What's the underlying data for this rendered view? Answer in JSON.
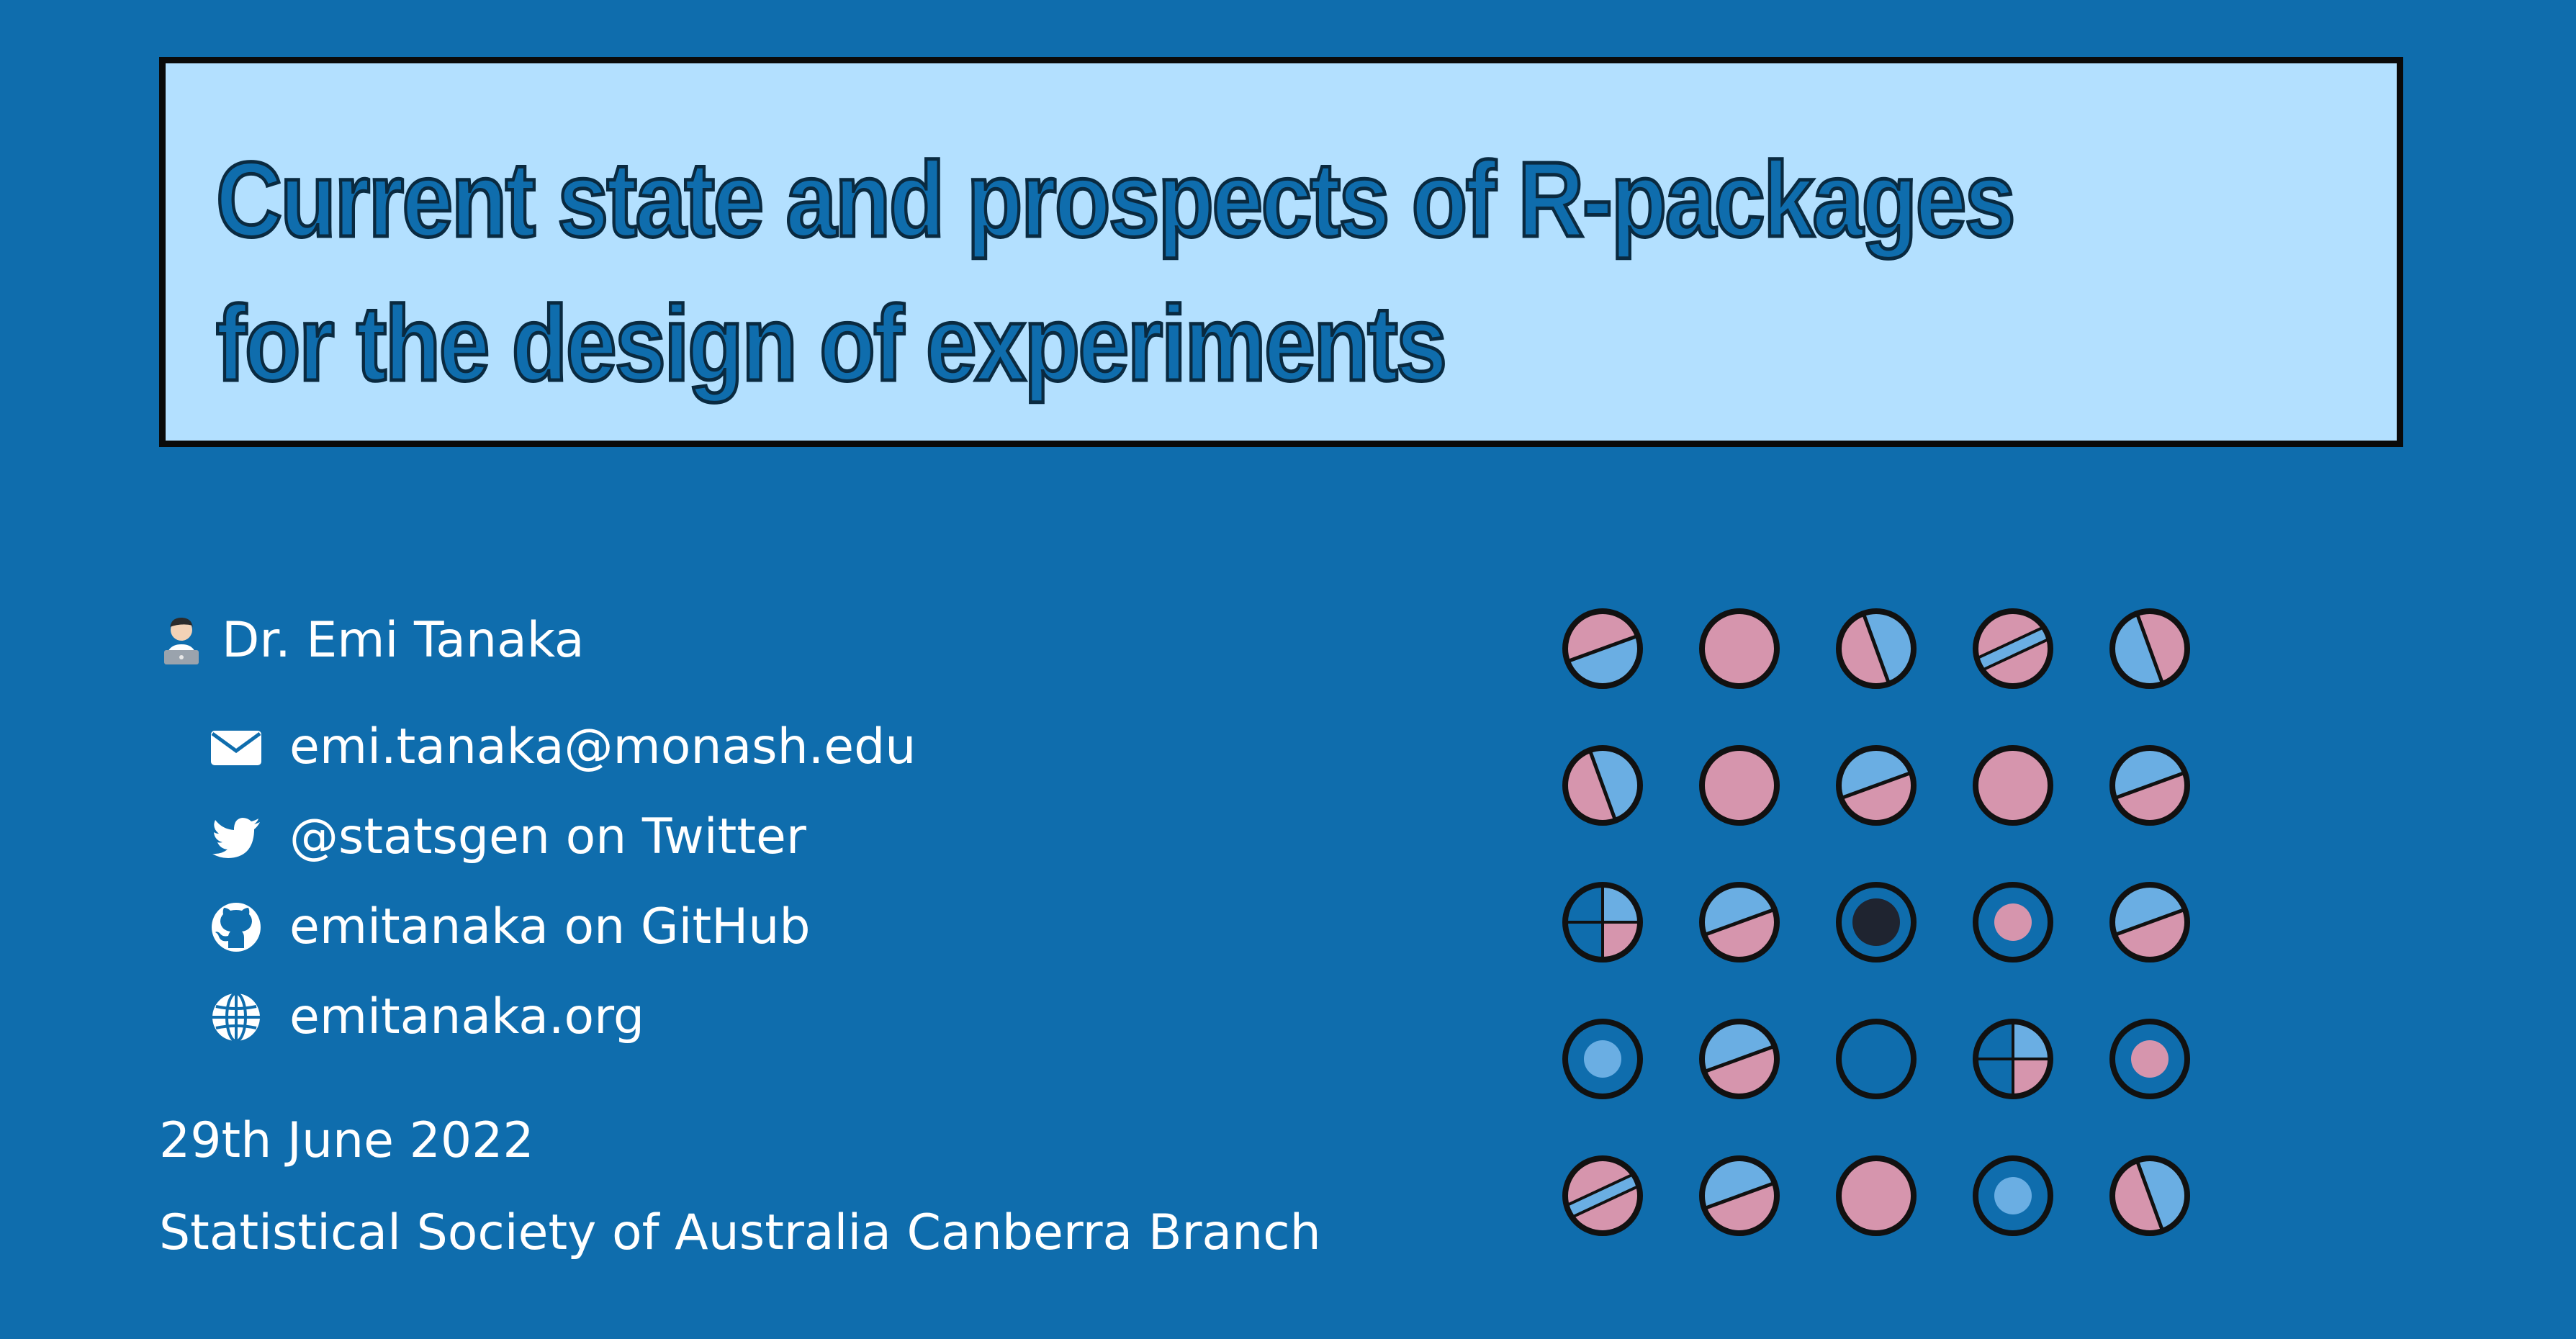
{
  "title": {
    "line1": "Current state and prospects of R-packages",
    "line2": "for the design of experiments"
  },
  "author": {
    "emoji": "technologist-emoji",
    "name": "Dr. Emi Tanaka"
  },
  "contacts": [
    {
      "icon": "envelope-icon",
      "text": "emi.tanaka@monash.edu"
    },
    {
      "icon": "twitter-icon",
      "text": "@statsgen on Twitter"
    },
    {
      "icon": "github-icon",
      "text": "emitanaka on GitHub"
    },
    {
      "icon": "globe-icon",
      "text": "emitanaka.org"
    }
  ],
  "date": "29th June 2022",
  "event": "Statistical Society of Australia Canberra Branch",
  "colors": {
    "background": "#0f6dad",
    "title_box": "#b3e0ff",
    "pink": "#d695ad",
    "light_blue": "#6aaee3",
    "dark": "#1f2430",
    "outline": "#111111"
  },
  "dot_grid": {
    "rows": 5,
    "cols": 5,
    "cells": [
      [
        "split-pink-top",
        "solid-pink",
        "split-pink-left",
        "stripe-pink-blue",
        "split-blue-left"
      ],
      [
        "split-pink-left",
        "solid-pink",
        "split-blue-top",
        "solid-pink",
        "split-blue-top"
      ],
      [
        "quad",
        "split-blue-top",
        "bullseye-dark",
        "ring-pink-center",
        "split-blue-top"
      ],
      [
        "ring-blue-center",
        "split-blue-top",
        "empty",
        "quad",
        "ring-pink-center"
      ],
      [
        "stripe-pink-blue",
        "split-blue-top",
        "solid-pink",
        "ring-blue-center",
        "split-pink-left"
      ]
    ]
  }
}
